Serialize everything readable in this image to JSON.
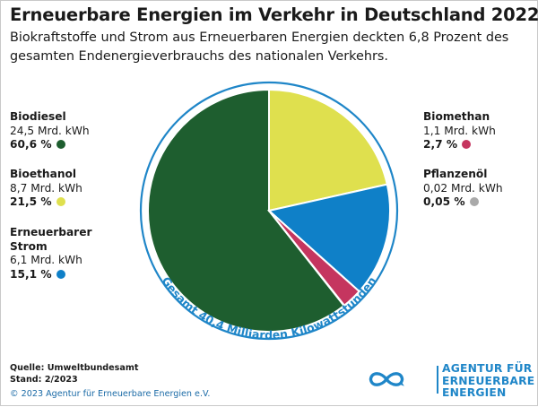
{
  "title": "Erneuerbare Energien im Verkehr in Deutschland 2022",
  "subtitle": "Biokraftstoffe und Strom aus Erneuerbaren Energien deckten 6,8 Prozent des gesamten Endenergieverbrauchs des nationalen Verkehrs.",
  "chart_data": {
    "type": "pie",
    "title": "Erneuerbare Energien im Verkehr in Deutschland 2022",
    "total_label": "Gesamt 40,4 Milliarden Kilowattstunden",
    "total": 40.4,
    "unit": "Mrd. kWh",
    "slices": [
      {
        "name": "Biodiesel",
        "amount": "24,5 Mrd. kWh",
        "pct_label": "60,6 %",
        "value": 60.6,
        "color": "#1e5e2f"
      },
      {
        "name": "Bioethanol",
        "amount": "8,7 Mrd. kWh",
        "pct_label": "21,5 %",
        "value": 21.5,
        "color": "#dfe04e"
      },
      {
        "name": "Erneuerbarer Strom",
        "amount": "6,1 Mrd. kWh",
        "pct_label": "15,1 %",
        "value": 15.1,
        "color": "#0f80c8"
      },
      {
        "name": "Biomethan",
        "amount": "1,1 Mrd. kWh",
        "pct_label": "2,7 %",
        "value": 2.7,
        "color": "#c5355f"
      },
      {
        "name": "Pflanzenöl",
        "amount": "0,02 Mrd. kWh",
        "pct_label": "0,05 %",
        "value": 0.05,
        "color": "#a9a9a9"
      }
    ],
    "ring_color": "#1f86c8"
  },
  "source": "Quelle: Umweltbundesamt",
  "stand": "Stand: 2/2023",
  "copyright": "© 2023 Agentur für Erneuerbare Energien e.V.",
  "logo": {
    "line1": "AGENTUR FÜR",
    "line2": "ERNEUERBARE",
    "line3": "ENERGIEN",
    "color": "#1f86c8"
  }
}
